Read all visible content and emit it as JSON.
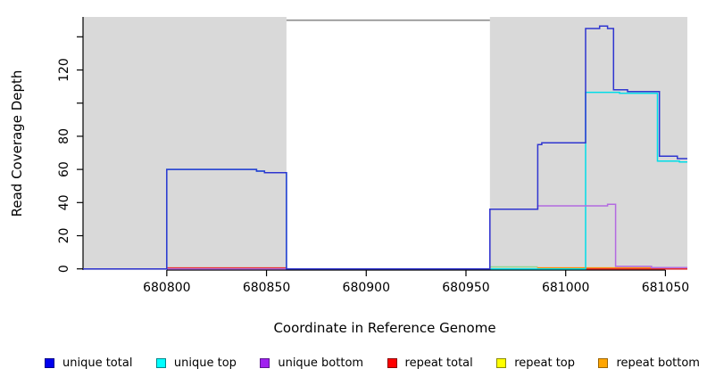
{
  "chart_data": {
    "type": "line",
    "subtype": "step-coverage-plot",
    "title": "",
    "xlabel": "Coordinate in Reference Genome",
    "ylabel": "Read Coverage Depth",
    "xlim": [
      680758,
      681061
    ],
    "ylim": [
      -0.7,
      152
    ],
    "grid": false,
    "plot_background": "#ffffff",
    "shade_color": "#d9d9d9",
    "gap_top_border_color": "#8c8c8c",
    "axis_color": "#000000",
    "x_ticks": [
      {
        "value": 680800,
        "label": "680800"
      },
      {
        "value": 680850,
        "label": "680850"
      },
      {
        "value": 680900,
        "label": "680900"
      },
      {
        "value": 680950,
        "label": "680950"
      },
      {
        "value": 681000,
        "label": "681000"
      },
      {
        "value": 681050,
        "label": "681050"
      }
    ],
    "y_ticks": [
      {
        "value": 0,
        "label": "0"
      },
      {
        "value": 20,
        "label": "20"
      },
      {
        "value": 40,
        "label": "40"
      },
      {
        "value": 60,
        "label": "60"
      },
      {
        "value": 80,
        "label": "80"
      },
      {
        "value": 100,
        "label": ""
      },
      {
        "value": 120,
        "label": "120"
      },
      {
        "value": 140,
        "label": ""
      }
    ],
    "shaded_regions": [
      {
        "x1": 680758,
        "x2": 680860
      },
      {
        "x1": 680962,
        "x2": 681061
      }
    ],
    "gap_region": {
      "x1": 680860,
      "x2": 680962,
      "top_value": 150
    },
    "series": [
      {
        "name": "repeat top",
        "color": "#e8e800",
        "segments": [
          [
            680758,
            681061,
            0
          ]
        ]
      },
      {
        "name": "repeat bottom",
        "color": "#ff8c00",
        "segments": [
          [
            680758,
            680986,
            0
          ],
          [
            680986,
            681061,
            0.6
          ]
        ]
      },
      {
        "name": "repeat total",
        "color": "#e83030",
        "segments": [
          [
            680758,
            680800,
            0
          ],
          [
            680800,
            680860,
            0.6
          ],
          [
            680860,
            681061,
            0
          ]
        ]
      },
      {
        "name": "unique top",
        "color": "#00dde8",
        "segments": [
          [
            680758,
            680800,
            0
          ],
          [
            680800,
            680845,
            60
          ],
          [
            680845,
            680849,
            59
          ],
          [
            680849,
            680860,
            58
          ],
          [
            680860,
            681010,
            0
          ],
          [
            681010,
            681027,
            106.5
          ],
          [
            681027,
            681046,
            106
          ],
          [
            681046,
            681057,
            65
          ],
          [
            681057,
            681061,
            64.5
          ]
        ]
      },
      {
        "name": "unique bottom",
        "color": "#b36be0",
        "segments": [
          [
            680758,
            680962,
            0
          ],
          [
            680962,
            680986,
            36
          ],
          [
            680986,
            681021,
            38
          ],
          [
            681021,
            681025,
            39
          ],
          [
            681025,
            681043,
            1.5
          ],
          [
            681043,
            681061,
            0.8
          ]
        ]
      },
      {
        "name": "unique top + repeat top overlap",
        "color": "#90d890",
        "segments": [
          [
            680962,
            680986,
            1.2
          ]
        ]
      },
      {
        "name": "unique total",
        "color": "#2f35d0",
        "segments": [
          [
            680758,
            680800,
            0
          ],
          [
            680800,
            680845,
            60
          ],
          [
            680845,
            680849,
            59
          ],
          [
            680849,
            680860,
            58
          ],
          [
            680860,
            680962,
            0
          ],
          [
            680962,
            680986,
            36
          ],
          [
            680986,
            680988,
            75
          ],
          [
            680988,
            681010,
            76
          ],
          [
            681010,
            681017,
            145
          ],
          [
            681017,
            681021,
            146.5
          ],
          [
            681021,
            681024,
            145
          ],
          [
            681024,
            681031,
            108
          ],
          [
            681031,
            681047,
            107
          ],
          [
            681047,
            681056,
            68
          ],
          [
            681056,
            681061,
            66.5
          ]
        ]
      }
    ],
    "legend": [
      {
        "label": "unique total",
        "color": "#0000ee",
        "border": "#000088"
      },
      {
        "label": "unique top",
        "color": "#00ffff",
        "border": "#00868b"
      },
      {
        "label": "unique bottom",
        "color": "#a020f0",
        "border": "#5c1691"
      },
      {
        "label": "repeat total",
        "color": "#ff0000",
        "border": "#8b0000"
      },
      {
        "label": "repeat top",
        "color": "#ffff00",
        "border": "#8b8b00"
      },
      {
        "label": "repeat bottom",
        "color": "#ffa500",
        "border": "#9c6500"
      }
    ]
  }
}
